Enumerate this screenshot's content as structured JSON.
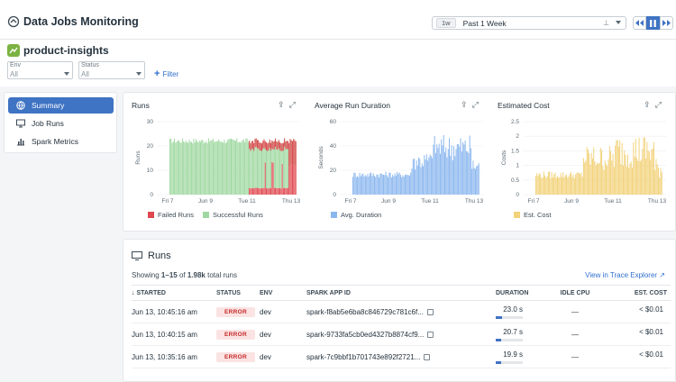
{
  "app": {
    "title": "Data Jobs Monitoring",
    "logo_icon": "dog-logo-icon"
  },
  "timeframe": {
    "pill": "1w",
    "label": "Past 1 Week",
    "pin_icon": "pin-icon"
  },
  "project": {
    "name": "product-insights"
  },
  "filters": [
    {
      "label": "Env",
      "value": "All"
    },
    {
      "label": "Status",
      "value": "All"
    }
  ],
  "add_filter": "Filter",
  "sidebar": {
    "items": [
      {
        "label": "Summary",
        "icon": "globe-icon",
        "active": true
      },
      {
        "label": "Job Runs",
        "icon": "monitor-icon",
        "active": false
      },
      {
        "label": "Spark Metrics",
        "icon": "bar-chart-icon",
        "active": false
      }
    ]
  },
  "chart_data": [
    {
      "type": "bar",
      "title": "Runs",
      "ylabel": "Runs",
      "ylim": [
        0,
        30
      ],
      "yticks": [
        "30",
        "20",
        "10",
        "0"
      ],
      "xticks": [
        "Fri 7",
        "Jun 9",
        "Tue 11",
        "Thu 13"
      ],
      "series": [
        {
          "name": "Failed Runs",
          "color": "#e0474e"
        },
        {
          "name": "Successful Runs",
          "color": "#9fd8a0"
        }
      ],
      "description_of_values": "approx. 22-25 runs per hour; failures from Tue 11 onward"
    },
    {
      "type": "bar",
      "title": "Average Run Duration",
      "ylabel": "Seconds",
      "ylim": [
        0,
        60
      ],
      "yticks": [
        "60",
        "40",
        "20",
        "0"
      ],
      "xticks": [
        "Fri 7",
        "Jun 9",
        "Tue 11",
        "Thu 13"
      ],
      "series": [
        {
          "name": "Avg. Duration",
          "color": "#8bb7ef"
        }
      ]
    },
    {
      "type": "bar",
      "title": "Estimated Cost",
      "ylabel": "Costs",
      "ylim": [
        0,
        2.5
      ],
      "yticks": [
        "2.5",
        "2",
        "1.5",
        "1",
        "0.5",
        "0"
      ],
      "xticks": [
        "Fri 7",
        "Jun 9",
        "Tue 11",
        "Thu 13"
      ],
      "series": [
        {
          "name": "Est. Cost",
          "color": "#f2d27a"
        }
      ]
    }
  ],
  "runs": {
    "title": "Runs",
    "showing_prefix": "Showing ",
    "showing_range": "1–15",
    "showing_of": " of ",
    "showing_total": "1.98k",
    "showing_suffix": " total runs",
    "trace_link": "View in Trace Explorer",
    "columns": [
      "STARTED",
      "STATUS",
      "ENV",
      "SPARK APP ID",
      "DURATION",
      "IDLE CPU",
      "EST. COST"
    ],
    "rows": [
      {
        "started": "Jun 13, 10:45:16 am",
        "status": "ERROR",
        "env": "dev",
        "app_id": "spark-f8ab5e6ba8c846729c781c6f...",
        "duration": "23.0 s",
        "duration_fraction": 0.22,
        "idle_cpu": "—",
        "cost": "< $0.01"
      },
      {
        "started": "Jun 13, 10:40:15 am",
        "status": "ERROR",
        "env": "dev",
        "app_id": "spark-9733fa5cb0ed4327b8874cf9...",
        "duration": "20.7 s",
        "duration_fraction": 0.2,
        "idle_cpu": "—",
        "cost": "< $0.01"
      },
      {
        "started": "Jun 13, 10:35:16 am",
        "status": "ERROR",
        "env": "dev",
        "app_id": "spark-7c9bbf1b701743e892f2721...",
        "duration": "19.9 s",
        "duration_fraction": 0.19,
        "idle_cpu": "—",
        "cost": "< $0.01"
      }
    ]
  }
}
